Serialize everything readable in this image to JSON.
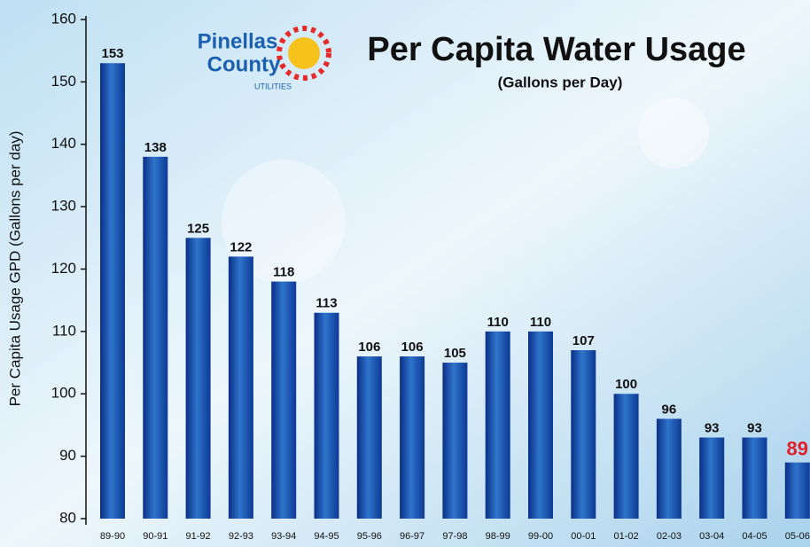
{
  "chart_data": {
    "type": "bar",
    "title": "Per Capita Water Usage",
    "subtitle": "(Gallons per Day)",
    "y_label": "Per Capita Usage GPD (Gallons per day)",
    "logo": {
      "line1": "Pinellas",
      "line2": "County",
      "line3": "UTILITIES"
    },
    "categories": [
      "89-90",
      "90-91",
      "91-92",
      "92-93",
      "93-94",
      "94-95",
      "95-96",
      "96-97",
      "97-98",
      "98-99",
      "99-00",
      "00-01",
      "01-02",
      "02-03",
      "03-04",
      "04-05",
      "05-06"
    ],
    "values": [
      153,
      138,
      125,
      122,
      118,
      113,
      106,
      106,
      105,
      110,
      110,
      107,
      100,
      96,
      93,
      93,
      89
    ],
    "label_colors": [
      "#111111",
      "#111111",
      "#111111",
      "#111111",
      "#111111",
      "#111111",
      "#111111",
      "#111111",
      "#111111",
      "#111111",
      "#111111",
      "#111111",
      "#111111",
      "#111111",
      "#111111",
      "#111111",
      "#e0202a"
    ],
    "ylim": [
      80,
      160
    ],
    "yticks": [
      80,
      90,
      100,
      110,
      120,
      130,
      140,
      150,
      160
    ]
  }
}
